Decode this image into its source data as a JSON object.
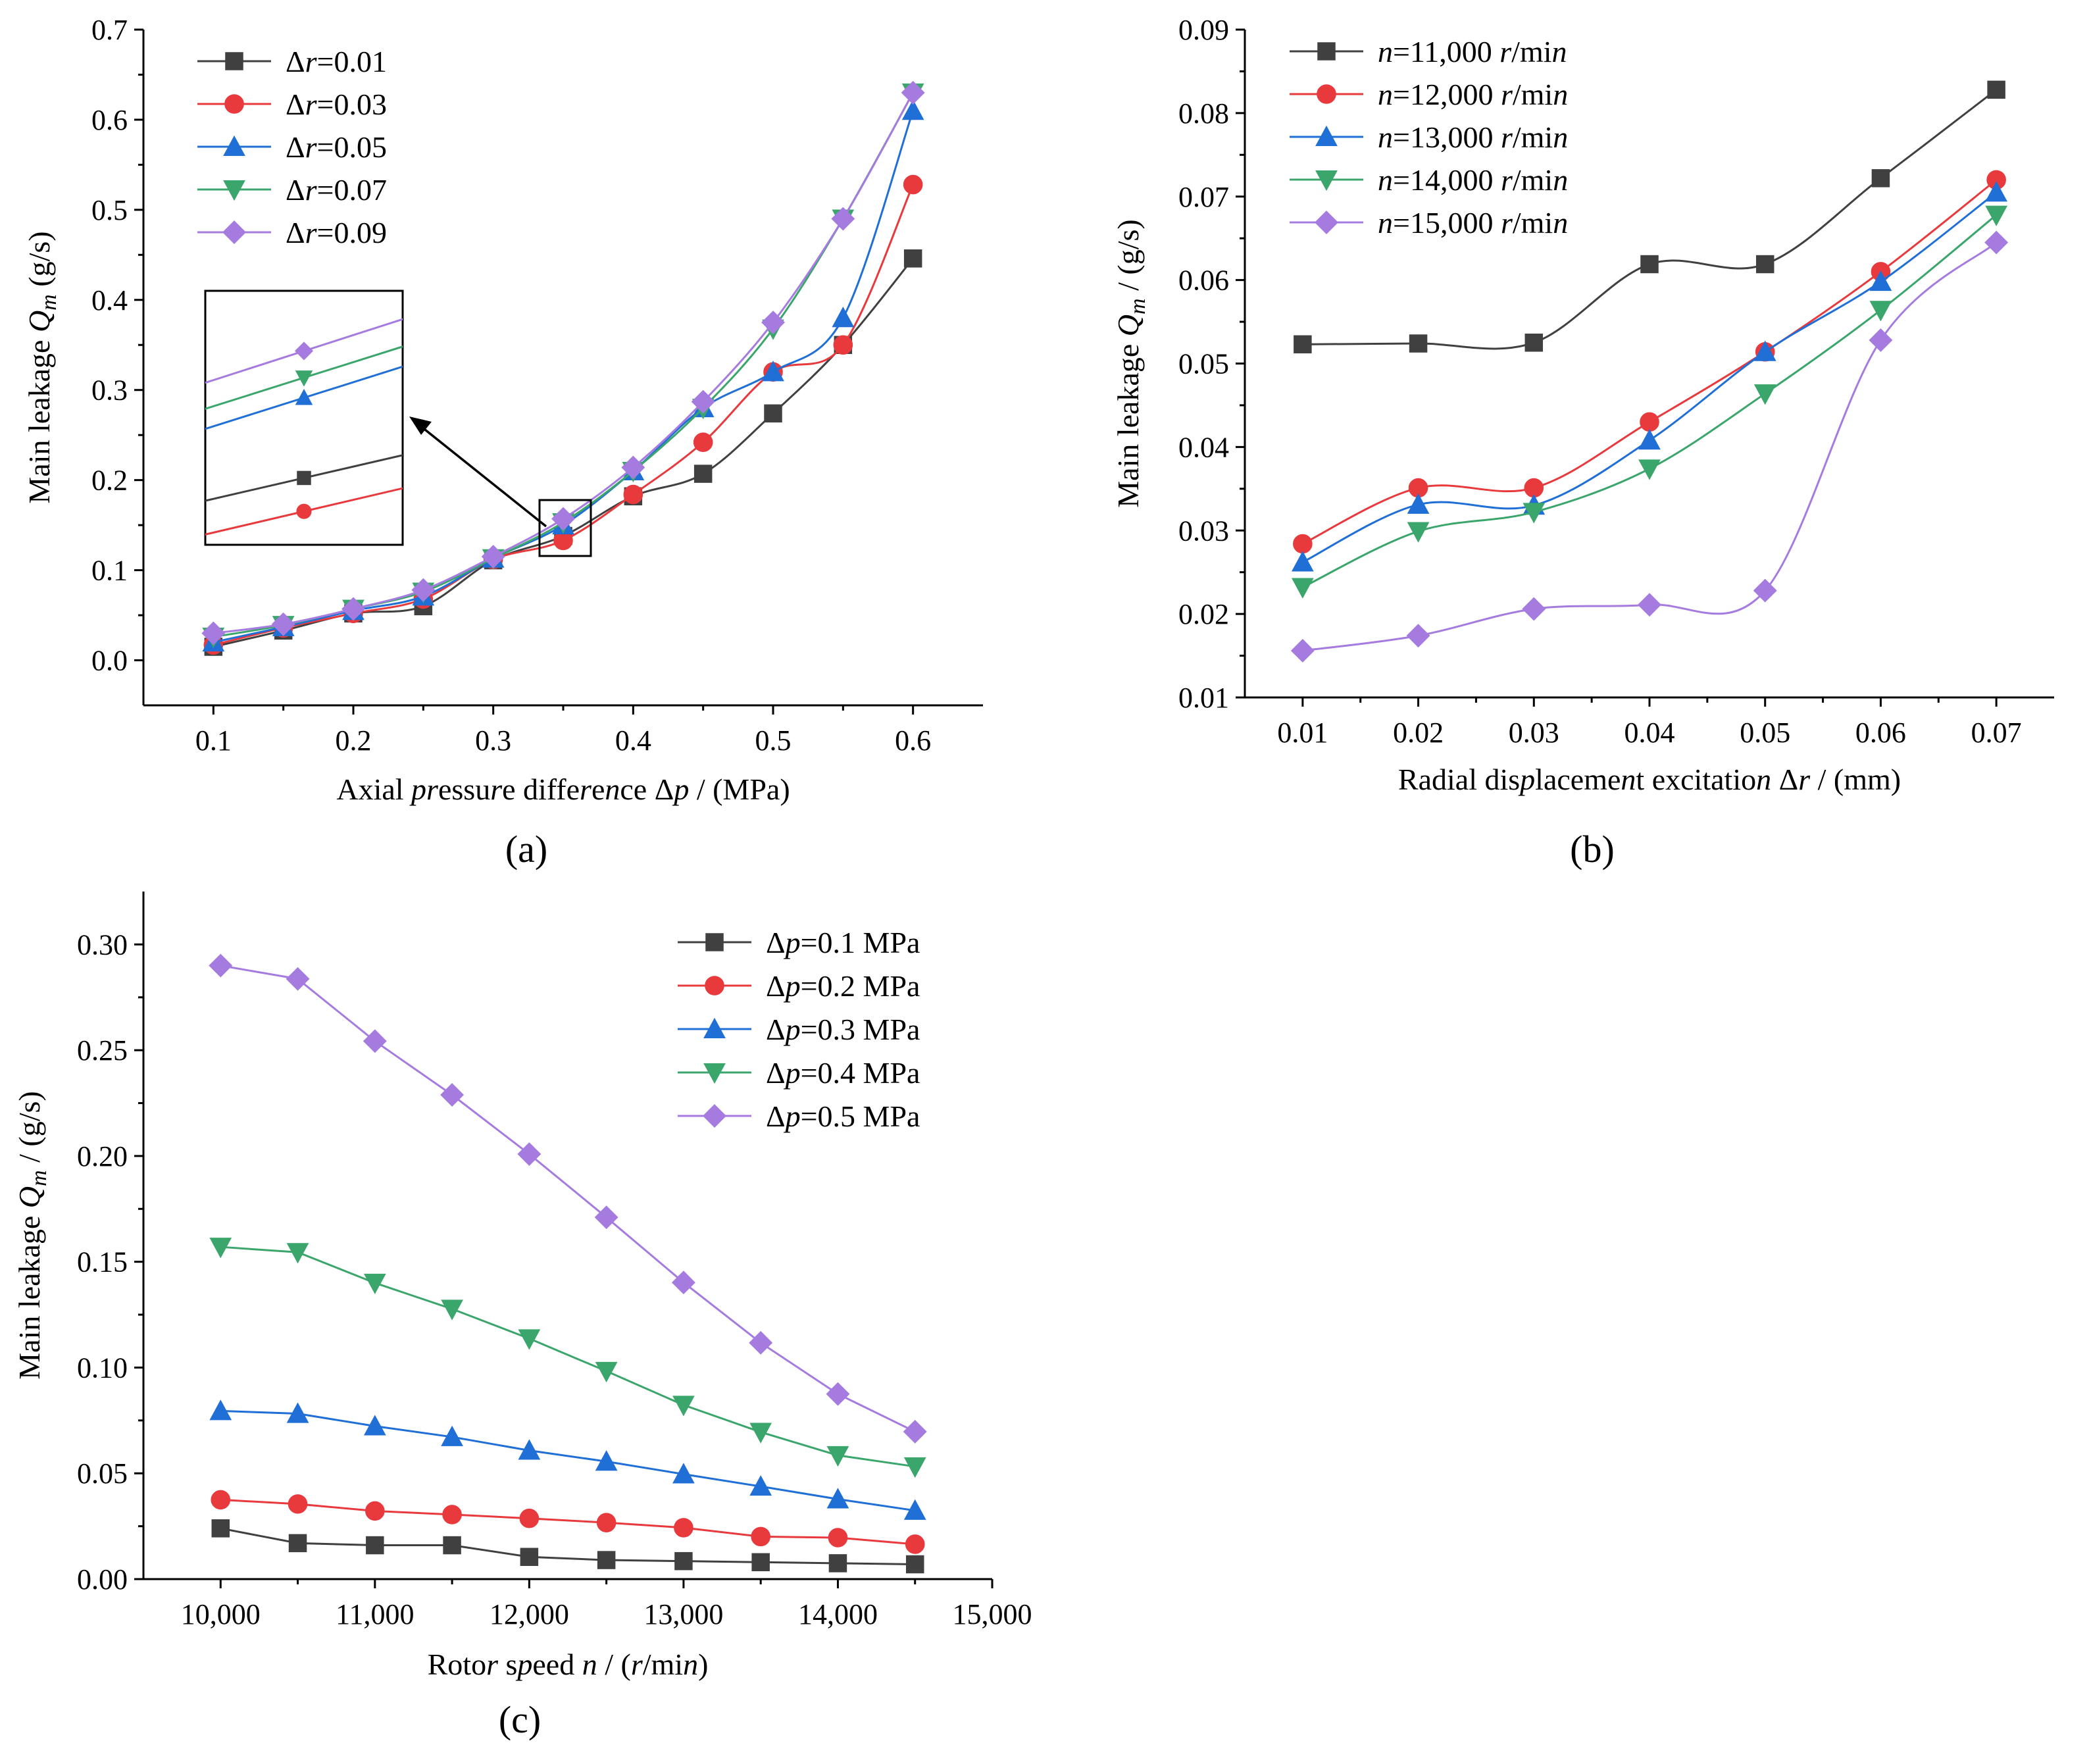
{
  "colors": {
    "black": "#404040",
    "red": "#e8393d",
    "blue": "#1f6fd6",
    "green": "#3aa66b",
    "purple": "#a57be0",
    "axis": "#000000"
  },
  "chart_data": [
    {
      "id": "a",
      "type": "line",
      "panel_label": "(a)",
      "xlabel": "Axial pressure difference Δp / (MPa)",
      "ylabel": "Main leakage Qm (g/s)",
      "xlim": [
        0.05,
        0.65
      ],
      "ylim": [
        -0.05,
        0.7
      ],
      "xticks": [
        0.1,
        0.2,
        0.3,
        0.4,
        0.5,
        0.6
      ],
      "xtick_labels": [
        "0.1",
        "0.2",
        "0.3",
        "0.4",
        "0.5",
        "0.6"
      ],
      "yticks": [
        0.0,
        0.1,
        0.2,
        0.3,
        0.4,
        0.5,
        0.6,
        0.7
      ],
      "ytick_labels": [
        "0.0",
        "0.1",
        "0.2",
        "0.3",
        "0.4",
        "0.5",
        "0.6",
        "0.7"
      ],
      "smooth": true,
      "legend_position": "top-left",
      "inset_zoom": true,
      "x": [
        0.1,
        0.15,
        0.2,
        0.25,
        0.3,
        0.35,
        0.4,
        0.45,
        0.5,
        0.55,
        0.6
      ],
      "series": [
        {
          "name": "Δr=0.01",
          "marker": "square",
          "color": "#404040",
          "values": [
            0.015,
            0.033,
            0.052,
            0.06,
            0.111,
            0.138,
            0.182,
            0.207,
            0.274,
            0.35,
            0.446
          ]
        },
        {
          "name": "Δr=0.03",
          "marker": "circle",
          "color": "#e8393d",
          "values": [
            0.017,
            0.036,
            0.052,
            0.068,
            0.112,
            0.133,
            0.184,
            0.242,
            0.32,
            0.35,
            0.528
          ]
        },
        {
          "name": "Δr=0.05",
          "marker": "triangle-up",
          "color": "#1f6fd6",
          "values": [
            0.02,
            0.037,
            0.055,
            0.071,
            0.113,
            0.15,
            0.21,
            0.28,
            0.32,
            0.38,
            0.61
          ]
        },
        {
          "name": "Δr=0.07",
          "marker": "triangle-down",
          "color": "#3aa66b",
          "values": [
            0.026,
            0.039,
            0.057,
            0.076,
            0.113,
            0.153,
            0.21,
            0.28,
            0.368,
            0.49,
            0.63
          ]
        },
        {
          "name": "Δr=0.09",
          "marker": "diamond",
          "color": "#a57be0",
          "values": [
            0.03,
            0.04,
            0.057,
            0.078,
            0.115,
            0.157,
            0.214,
            0.287,
            0.375,
            0.49,
            0.63
          ]
        }
      ]
    },
    {
      "id": "b",
      "type": "line",
      "panel_label": "(b)",
      "xlabel": "Radial displacement excitation Δr / (mm)",
      "ylabel": "Main leakage Qm / (g/s)",
      "xlim": [
        0.005,
        0.075
      ],
      "ylim": [
        0.01,
        0.09
      ],
      "xticks": [
        0.01,
        0.02,
        0.03,
        0.04,
        0.05,
        0.06,
        0.07
      ],
      "xtick_labels": [
        "0.01",
        "0.02",
        "0.03",
        "0.04",
        "0.05",
        "0.06",
        "0.07"
      ],
      "yticks": [
        0.01,
        0.02,
        0.03,
        0.04,
        0.05,
        0.06,
        0.07,
        0.08,
        0.09
      ],
      "ytick_labels": [
        "0.01",
        "0.02",
        "0.03",
        "0.04",
        "0.05",
        "0.06",
        "0.07",
        "0.08",
        "0.09"
      ],
      "smooth": true,
      "legend_position": "top-left",
      "x": [
        0.01,
        0.02,
        0.03,
        0.04,
        0.05,
        0.06,
        0.07
      ],
      "series": [
        {
          "name": "n=11,000 r/min",
          "marker": "square",
          "color": "#404040",
          "values": [
            0.0523,
            0.0524,
            0.0525,
            0.0619,
            0.0619,
            0.0722,
            0.0828
          ]
        },
        {
          "name": "n=12,000 r/min",
          "marker": "circle",
          "color": "#e8393d",
          "values": [
            0.0284,
            0.0351,
            0.0351,
            0.043,
            0.0514,
            0.061,
            0.072
          ]
        },
        {
          "name": "n=13,000 r/min",
          "marker": "triangle-up",
          "color": "#1f6fd6",
          "values": [
            0.0262,
            0.0331,
            0.033,
            0.0408,
            0.0514,
            0.0598,
            0.0705
          ]
        },
        {
          "name": "n=14,000 r/min",
          "marker": "triangle-down",
          "color": "#3aa66b",
          "values": [
            0.0232,
            0.0299,
            0.0322,
            0.0374,
            0.0464,
            0.0564,
            0.0678
          ]
        },
        {
          "name": "n=15,000 r/min",
          "marker": "diamond",
          "color": "#a57be0",
          "values": [
            0.0156,
            0.0174,
            0.0206,
            0.0211,
            0.0228,
            0.0528,
            0.0645
          ]
        }
      ]
    },
    {
      "id": "c",
      "type": "line",
      "panel_label": "(c)",
      "xlabel": "Rotor speed n / (r/min)",
      "ylabel": "Main leakage Qm / (g/s)",
      "xlim": [
        9500,
        15000
      ],
      "ylim": [
        0,
        0.325
      ],
      "xticks": [
        10000,
        11000,
        12000,
        13000,
        14000,
        15000
      ],
      "xtick_labels": [
        "10,000",
        "11,000",
        "12,000",
        "13,000",
        "14,000",
        "15,000"
      ],
      "yticks": [
        0,
        0.05,
        0.1,
        0.15,
        0.2,
        0.25,
        0.3
      ],
      "ytick_labels": [
        "0.00",
        "0.05",
        "0.10",
        "0.15",
        "0.20",
        "0.25",
        "0.30"
      ],
      "smooth": false,
      "legend_position": "top-right",
      "x": [
        10000,
        10500,
        11000,
        11500,
        12000,
        12500,
        13000,
        13500,
        14000,
        14500
      ],
      "series": [
        {
          "name": "Δp=0.1 MPa",
          "marker": "square",
          "color": "#404040",
          "values": [
            0.024,
            0.017,
            0.016,
            0.016,
            0.0105,
            0.009,
            0.0085,
            0.008,
            0.0075,
            0.007
          ]
        },
        {
          "name": "Δp=0.2 MPa",
          "marker": "circle",
          "color": "#e8393d",
          "values": [
            0.0375,
            0.0355,
            0.0322,
            0.0305,
            0.0287,
            0.0267,
            0.0243,
            0.0201,
            0.0196,
            0.0165
          ]
        },
        {
          "name": "Δp=0.3 MPa",
          "marker": "triangle-up",
          "color": "#1f6fd6",
          "values": [
            0.0795,
            0.0782,
            0.0723,
            0.0672,
            0.0608,
            0.0556,
            0.0496,
            0.0438,
            0.0378,
            0.0324
          ]
        },
        {
          "name": "Δp=0.4 MPa",
          "marker": "triangle-down",
          "color": "#3aa66b",
          "values": [
            0.157,
            0.1545,
            0.14,
            0.1277,
            0.1137,
            0.0983,
            0.0823,
            0.0695,
            0.0585,
            0.0532
          ]
        },
        {
          "name": "Δp=0.5 MPa",
          "marker": "diamond",
          "color": "#a57be0",
          "values": [
            0.29,
            0.2837,
            0.2543,
            0.2289,
            0.2009,
            0.171,
            0.1402,
            0.1117,
            0.0875,
            0.0697
          ]
        }
      ]
    }
  ]
}
